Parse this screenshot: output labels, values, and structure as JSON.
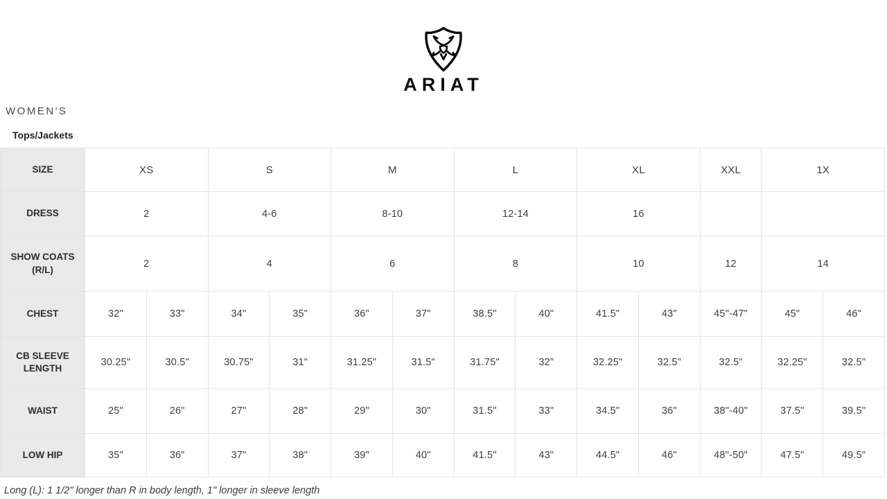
{
  "brand": {
    "name": "ARIAT",
    "logo_icon": "ariat-shield-logo",
    "brand_color": "#111111"
  },
  "page": {
    "category_label": "WOMEN'S",
    "section_label": "Tops/Jackets",
    "footnote": "Long (L): 1 1/2\" longer than R in body length, 1\" longer in sleeve length"
  },
  "colors": {
    "table_label_bg": "#e9e9e9",
    "grid_line": "#e3e3e3",
    "text": "#3e3e3e"
  },
  "chart_data": {
    "type": "table",
    "title": "ARIAT Women's Tops/Jackets Size Chart",
    "columns": [
      "SIZE",
      "XS",
      "S",
      "M",
      "L",
      "XL",
      "XXL",
      "1X"
    ],
    "rows": [
      {
        "label": "SIZE",
        "cells": [
          {
            "text": "XS",
            "span": 2
          },
          {
            "text": "S",
            "span": 2
          },
          {
            "text": "M",
            "span": 2
          },
          {
            "text": "L",
            "span": 2
          },
          {
            "text": "XL",
            "span": 2
          },
          {
            "text": "XXL",
            "span": 1
          },
          {
            "text": "1X",
            "span": 2
          }
        ]
      },
      {
        "label": "DRESS",
        "cells": [
          {
            "text": "2",
            "span": 2
          },
          {
            "text": "4-6",
            "span": 2
          },
          {
            "text": "8-10",
            "span": 2
          },
          {
            "text": "12-14",
            "span": 2
          },
          {
            "text": "16",
            "span": 2
          },
          {
            "text": "",
            "span": 1
          },
          {
            "text": "",
            "span": 2
          }
        ]
      },
      {
        "label": "SHOW COATS (R/L)",
        "cells": [
          {
            "text": "2",
            "span": 2
          },
          {
            "text": "4",
            "span": 2
          },
          {
            "text": "6",
            "span": 2
          },
          {
            "text": "8",
            "span": 2
          },
          {
            "text": "10",
            "span": 2
          },
          {
            "text": "12",
            "span": 1
          },
          {
            "text": "14",
            "span": 2
          }
        ]
      },
      {
        "label": "CHEST",
        "cells": [
          {
            "text": "32\"",
            "span": 1
          },
          {
            "text": "33\"",
            "span": 1
          },
          {
            "text": "34\"",
            "span": 1
          },
          {
            "text": "35\"",
            "span": 1
          },
          {
            "text": "36\"",
            "span": 1
          },
          {
            "text": "37\"",
            "span": 1
          },
          {
            "text": "38.5\"",
            "span": 1
          },
          {
            "text": "40\"",
            "span": 1
          },
          {
            "text": "41.5\"",
            "span": 1
          },
          {
            "text": "43\"",
            "span": 1
          },
          {
            "text": "45\"-47\"",
            "span": 1
          },
          {
            "text": "45\"",
            "span": 1
          },
          {
            "text": "46\"",
            "span": 1
          }
        ]
      },
      {
        "label": "CB SLEEVE LENGTH",
        "cells": [
          {
            "text": "30.25\"",
            "span": 1
          },
          {
            "text": "30.5\"",
            "span": 1
          },
          {
            "text": "30.75\"",
            "span": 1
          },
          {
            "text": "31\"",
            "span": 1
          },
          {
            "text": "31.25\"",
            "span": 1
          },
          {
            "text": "31.5\"",
            "span": 1
          },
          {
            "text": "31.75\"",
            "span": 1
          },
          {
            "text": "32\"",
            "span": 1
          },
          {
            "text": "32.25\"",
            "span": 1
          },
          {
            "text": "32.5\"",
            "span": 1
          },
          {
            "text": "32.5\"",
            "span": 1
          },
          {
            "text": "32.25\"",
            "span": 1
          },
          {
            "text": "32.5\"",
            "span": 1
          }
        ]
      },
      {
        "label": "WAIST",
        "cells": [
          {
            "text": "25\"",
            "span": 1
          },
          {
            "text": "26\"",
            "span": 1
          },
          {
            "text": "27\"",
            "span": 1
          },
          {
            "text": "28\"",
            "span": 1
          },
          {
            "text": "29\"",
            "span": 1
          },
          {
            "text": "30\"",
            "span": 1
          },
          {
            "text": "31.5\"",
            "span": 1
          },
          {
            "text": "33\"",
            "span": 1
          },
          {
            "text": "34.5\"",
            "span": 1
          },
          {
            "text": "36\"",
            "span": 1
          },
          {
            "text": "38\"-40\"",
            "span": 1
          },
          {
            "text": "37.5\"",
            "span": 1
          },
          {
            "text": "39.5\"",
            "span": 1
          }
        ]
      },
      {
        "label": "LOW HIP",
        "cells": [
          {
            "text": "35\"",
            "span": 1
          },
          {
            "text": "36\"",
            "span": 1
          },
          {
            "text": "37\"",
            "span": 1
          },
          {
            "text": "38\"",
            "span": 1
          },
          {
            "text": "39\"",
            "span": 1
          },
          {
            "text": "40\"",
            "span": 1
          },
          {
            "text": "41.5\"",
            "span": 1
          },
          {
            "text": "43\"",
            "span": 1
          },
          {
            "text": "44.5\"",
            "span": 1
          },
          {
            "text": "46\"",
            "span": 1
          },
          {
            "text": "48\"-50\"",
            "span": 1
          },
          {
            "text": "47.5\"",
            "span": 1
          },
          {
            "text": "49.5\"",
            "span": 1
          }
        ]
      }
    ]
  }
}
